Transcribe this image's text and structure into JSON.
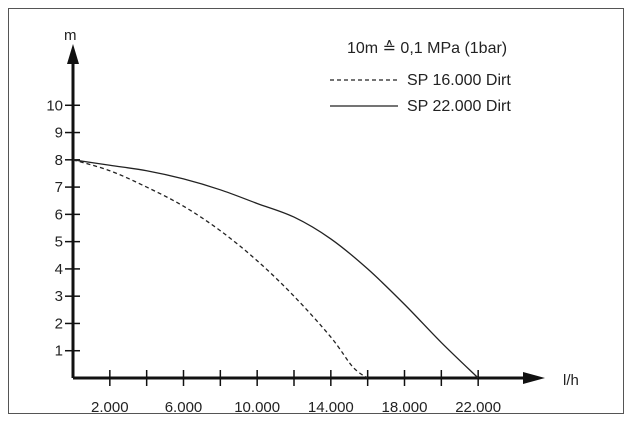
{
  "chart_data": {
    "type": "line",
    "title": "",
    "ylabel": "m",
    "xlabel": "l/h",
    "note": "10m ≙ 0,1 MPa (1bar)",
    "xlim": [
      0,
      24000
    ],
    "ylim": [
      0,
      11
    ],
    "y_ticks": [
      1,
      2,
      3,
      4,
      5,
      6,
      7,
      8,
      9,
      10
    ],
    "x_ticks": [
      2000,
      4000,
      6000,
      8000,
      10000,
      12000,
      14000,
      16000,
      18000,
      20000,
      22000
    ],
    "x_tick_labels": [
      {
        "value": 2000,
        "label": "2.000"
      },
      {
        "value": 6000,
        "label": "6.000"
      },
      {
        "value": 10000,
        "label": "10.000"
      },
      {
        "value": 14000,
        "label": "14.000"
      },
      {
        "value": 18000,
        "label": "18.000"
      },
      {
        "value": 22000,
        "label": "22.000"
      }
    ],
    "grid": false,
    "legend_position": "top-right",
    "series": [
      {
        "name": "SP 16.000 Dirt",
        "style": "dashed",
        "color": "#222222",
        "points": [
          [
            0,
            8.0
          ],
          [
            2000,
            7.6
          ],
          [
            4000,
            7.0
          ],
          [
            6000,
            6.3
          ],
          [
            8000,
            5.4
          ],
          [
            10000,
            4.3
          ],
          [
            12000,
            3.0
          ],
          [
            14000,
            1.5
          ],
          [
            15200,
            0.4
          ],
          [
            16000,
            0
          ]
        ]
      },
      {
        "name": "SP 22.000 Dirt",
        "style": "solid",
        "color": "#222222",
        "points": [
          [
            0,
            8.0
          ],
          [
            2000,
            7.8
          ],
          [
            4000,
            7.6
          ],
          [
            6000,
            7.3
          ],
          [
            8000,
            6.9
          ],
          [
            10000,
            6.4
          ],
          [
            12000,
            5.9
          ],
          [
            14000,
            5.1
          ],
          [
            16000,
            4.0
          ],
          [
            18000,
            2.7
          ],
          [
            20000,
            1.3
          ],
          [
            22000,
            0
          ]
        ]
      }
    ]
  }
}
